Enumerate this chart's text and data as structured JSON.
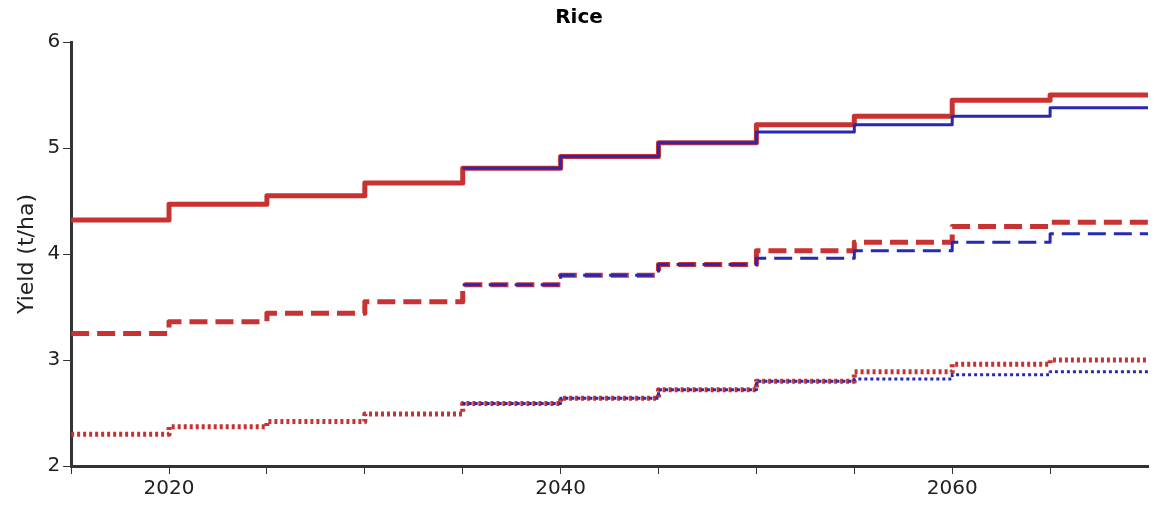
{
  "chart_data": {
    "type": "step",
    "title": "Rice",
    "ylabel": "Yield (t/ha)",
    "x": [
      2015,
      2020,
      2025,
      2030,
      2035,
      2040,
      2045,
      2050,
      2055,
      2060,
      2065,
      2070
    ],
    "series": [
      {
        "color": "#c83232",
        "line_style": "solid",
        "values": [
          4.32,
          4.47,
          4.55,
          4.67,
          4.81,
          4.92,
          5.05,
          5.22,
          5.3,
          5.45,
          5.5,
          5.5
        ]
      },
      {
        "color": "#c83232",
        "line_style": "dashed",
        "values": [
          3.25,
          3.36,
          3.44,
          3.55,
          3.71,
          3.8,
          3.9,
          4.03,
          4.11,
          4.26,
          4.3,
          4.3
        ]
      },
      {
        "color": "#c83232",
        "line_style": "dotted",
        "values": [
          2.3,
          2.37,
          2.42,
          2.49,
          2.59,
          2.64,
          2.72,
          2.8,
          2.89,
          2.96,
          3.0,
          3.0
        ]
      },
      {
        "color": "#2828b4",
        "line_style": "solid",
        "values": [
          null,
          null,
          null,
          null,
          4.81,
          4.92,
          5.05,
          5.15,
          5.22,
          5.3,
          5.38,
          5.38
        ]
      },
      {
        "color": "#2828b4",
        "line_style": "dashed",
        "values": [
          null,
          null,
          null,
          null,
          3.71,
          3.8,
          3.9,
          3.96,
          4.03,
          4.11,
          4.19,
          4.19
        ]
      },
      {
        "color": "#2828b4",
        "line_style": "dotted",
        "values": [
          null,
          null,
          null,
          null,
          2.59,
          2.64,
          2.72,
          2.8,
          2.82,
          2.86,
          2.89,
          2.89
        ]
      }
    ],
    "xlim": [
      2015,
      2070
    ],
    "xticks": [
      {
        "value": 2015,
        "label": null
      },
      2020,
      {
        "value": 2025,
        "label": null
      },
      {
        "value": 2030,
        "label": null
      },
      {
        "value": 2035,
        "label": null
      },
      2040,
      {
        "value": 2045,
        "label": null
      },
      {
        "value": 2050,
        "label": null
      },
      {
        "value": 2055,
        "label": null
      },
      2060,
      {
        "value": 2065,
        "label": null
      }
    ],
    "ylim": [
      2,
      6
    ],
    "yticks": [
      2,
      3,
      4,
      5,
      6
    ],
    "grid": false,
    "legend": false
  }
}
